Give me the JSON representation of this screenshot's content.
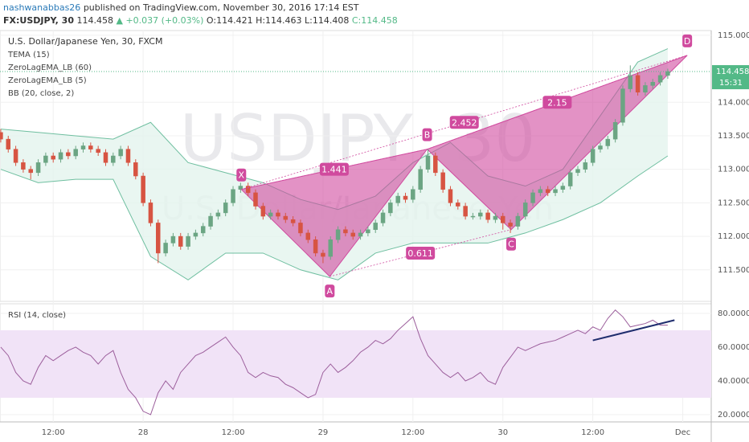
{
  "header": {
    "publisher": "nashwanabbas26",
    "published": "published on TradingView.com, November 30, 2016 17:14 EST"
  },
  "chart_data": {
    "type": "candlestick",
    "symbol": "FX:USDJPY, 30",
    "last": "114.458",
    "change": "▲ +0.037 (+0.03%)",
    "quote": [
      "O:114.421",
      "H:114.463",
      "L:114.408",
      "C:114.458"
    ],
    "title": "U.S. Dollar/Japanese Yen, 30, FXCM",
    "watermark": "USDJPY, 30",
    "watermark_sub": "U.S. Dollar/Japanese Yen",
    "indicators": [
      "TEMA (15)",
      "ZeroLagEMA_LB (60)",
      "ZeroLagEMA_LB (5)",
      "BB (20, close, 2)"
    ],
    "up_color": "#6ba583",
    "down_color": "#d75442",
    "x": [
      0,
      1,
      2,
      3,
      4,
      5,
      6,
      7,
      8,
      9,
      10,
      11,
      12,
      13,
      14,
      15,
      16,
      17,
      18,
      19,
      20,
      21,
      22,
      23,
      24,
      25,
      26,
      27,
      28,
      29,
      30,
      31,
      32,
      33,
      34,
      35,
      36,
      37,
      38,
      39,
      40,
      41,
      42,
      43,
      44,
      45,
      46,
      47,
      48,
      49,
      50,
      51,
      52,
      53,
      54,
      55,
      56,
      57,
      58,
      59,
      60,
      61,
      62,
      63,
      64,
      65,
      66,
      67,
      68,
      69,
      70,
      71,
      72,
      73,
      74,
      75,
      76,
      77,
      78,
      79,
      80,
      81,
      82,
      83,
      84,
      85,
      86,
      87,
      88,
      89
    ],
    "open": [
      113.55,
      113.45,
      113.3,
      113.1,
      113.0,
      112.95,
      113.1,
      113.2,
      113.15,
      113.25,
      113.2,
      113.3,
      113.35,
      113.3,
      113.25,
      113.1,
      113.2,
      113.3,
      113.1,
      112.9,
      112.5,
      112.2,
      111.75,
      111.9,
      112.0,
      111.85,
      112.0,
      112.05,
      112.15,
      112.3,
      112.35,
      112.5,
      112.7,
      112.75,
      112.65,
      112.45,
      112.3,
      112.35,
      112.3,
      112.25,
      112.2,
      112.05,
      111.95,
      111.75,
      111.7,
      111.95,
      112.1,
      112.05,
      112.0,
      112.05,
      112.1,
      112.2,
      112.35,
      112.5,
      112.6,
      112.55,
      112.7,
      113.0,
      113.2,
      112.95,
      112.7,
      112.5,
      112.45,
      112.3,
      112.3,
      112.35,
      112.25,
      112.3,
      112.2,
      112.15,
      112.3,
      112.5,
      112.65,
      112.7,
      112.65,
      112.7,
      112.75,
      112.95,
      113.0,
      113.1,
      113.3,
      113.35,
      113.45,
      113.7,
      114.2,
      114.4,
      114.15,
      114.25,
      114.3,
      114.4
    ],
    "high": [
      113.6,
      113.5,
      113.35,
      113.15,
      113.05,
      113.15,
      113.25,
      113.25,
      113.3,
      113.3,
      113.35,
      113.4,
      113.4,
      113.35,
      113.3,
      113.25,
      113.35,
      113.35,
      113.15,
      112.95,
      112.55,
      112.25,
      111.95,
      112.05,
      112.05,
      112.05,
      112.1,
      112.2,
      112.35,
      112.4,
      112.55,
      112.75,
      112.8,
      112.8,
      112.7,
      112.5,
      112.4,
      112.4,
      112.35,
      112.3,
      112.25,
      112.1,
      112.0,
      111.8,
      112.0,
      112.15,
      112.15,
      112.1,
      112.1,
      112.15,
      112.25,
      112.4,
      112.55,
      112.65,
      112.65,
      112.75,
      113.05,
      113.3,
      113.25,
      113.0,
      112.75,
      112.55,
      112.5,
      112.35,
      112.4,
      112.4,
      112.35,
      112.35,
      112.25,
      112.35,
      112.55,
      112.7,
      112.75,
      112.75,
      112.75,
      112.8,
      113.0,
      113.05,
      113.15,
      113.35,
      113.4,
      113.5,
      113.75,
      114.25,
      114.55,
      114.45,
      114.3,
      114.35,
      114.45,
      114.5
    ],
    "low": [
      113.4,
      113.25,
      113.05,
      112.95,
      112.85,
      112.9,
      113.05,
      113.1,
      113.1,
      113.15,
      113.15,
      113.25,
      113.25,
      113.2,
      113.05,
      113.05,
      113.15,
      113.05,
      112.85,
      112.45,
      112.15,
      111.6,
      111.7,
      111.85,
      111.8,
      111.8,
      111.95,
      112.0,
      112.1,
      112.25,
      112.3,
      112.45,
      112.65,
      112.6,
      112.4,
      112.25,
      112.25,
      112.25,
      112.2,
      112.15,
      112.0,
      111.9,
      111.7,
      111.6,
      111.65,
      111.9,
      112.0,
      111.95,
      111.95,
      112.0,
      112.05,
      112.15,
      112.3,
      112.45,
      112.5,
      112.5,
      112.65,
      112.95,
      112.9,
      112.65,
      112.45,
      112.4,
      112.25,
      112.25,
      112.25,
      112.2,
      112.2,
      112.1,
      112.05,
      112.1,
      112.25,
      112.45,
      112.6,
      112.6,
      112.6,
      112.65,
      112.7,
      112.9,
      112.95,
      113.05,
      113.25,
      113.3,
      113.4,
      113.65,
      114.15,
      114.1,
      114.1,
      114.2,
      114.25,
      114.35
    ],
    "close": [
      113.45,
      113.3,
      113.1,
      113.0,
      112.95,
      113.1,
      113.2,
      113.15,
      113.25,
      113.2,
      113.3,
      113.35,
      113.3,
      113.25,
      113.1,
      113.2,
      113.3,
      113.1,
      112.9,
      112.5,
      112.2,
      111.75,
      111.9,
      112.0,
      111.85,
      112.0,
      112.05,
      112.15,
      112.3,
      112.35,
      112.5,
      112.7,
      112.75,
      112.65,
      112.45,
      112.3,
      112.35,
      112.3,
      112.25,
      112.2,
      112.05,
      111.95,
      111.75,
      111.7,
      111.95,
      112.1,
      112.05,
      112.0,
      112.05,
      112.1,
      112.2,
      112.35,
      112.5,
      112.6,
      112.55,
      112.7,
      113.0,
      113.2,
      112.95,
      112.7,
      112.5,
      112.45,
      112.3,
      112.3,
      112.35,
      112.25,
      112.3,
      112.2,
      112.15,
      112.3,
      112.5,
      112.65,
      112.7,
      112.65,
      112.7,
      112.75,
      112.95,
      113.0,
      113.1,
      113.3,
      113.35,
      113.45,
      113.7,
      114.2,
      114.4,
      114.15,
      114.25,
      114.3,
      114.4,
      114.458
    ],
    "xlim": [
      -0.1,
      94.8
    ],
    "xticks": [
      {
        "value": 7,
        "label": "12:00"
      },
      {
        "value": 19,
        "label": "28"
      },
      {
        "value": 31,
        "label": "12:00"
      },
      {
        "value": 43,
        "label": "29"
      },
      {
        "value": 55,
        "label": "12:00"
      },
      {
        "value": 67,
        "label": "30"
      },
      {
        "value": 79,
        "label": "12:00"
      },
      {
        "value": 91,
        "label": "Dec"
      }
    ],
    "ylim": [
      111.03,
      115.07
    ],
    "yticks": [
      {
        "value": 111.5,
        "label": "111.500"
      },
      {
        "value": 112,
        "label": "112.000"
      },
      {
        "value": 112.5,
        "label": "112.500"
      },
      {
        "value": 113,
        "label": "113.000"
      },
      {
        "value": 113.5,
        "label": "113.500"
      },
      {
        "value": 114,
        "label": "114.000"
      },
      {
        "value": 115,
        "label": "115.000"
      }
    ],
    "last_price": {
      "value": 114.458,
      "label": "114.458",
      "countdown": "15:31",
      "color": "#53b987"
    },
    "bollinger": {
      "color": "#6fbfa0",
      "fill": "#e3f4ee",
      "x": [
        0,
        5,
        10,
        15,
        20,
        25,
        30,
        35,
        40,
        45,
        50,
        55,
        60,
        65,
        70,
        75,
        80,
        85,
        89
      ],
      "upper": [
        113.6,
        113.55,
        113.5,
        113.45,
        113.7,
        113.1,
        112.95,
        112.8,
        112.55,
        112.4,
        112.6,
        113.1,
        113.4,
        112.9,
        112.75,
        113.0,
        113.8,
        114.6,
        114.8
      ],
      "lower": [
        113.0,
        112.8,
        112.85,
        112.85,
        111.7,
        111.35,
        111.75,
        111.75,
        111.5,
        111.35,
        111.75,
        111.9,
        111.9,
        111.9,
        112.05,
        112.25,
        112.5,
        112.9,
        113.2
      ]
    },
    "pattern": {
      "color": "#d04a9e",
      "points": [
        {
          "label": "X",
          "x": 32.1,
          "y": 112.7
        },
        {
          "label": "A",
          "x": 43.9,
          "y": 111.4
        },
        {
          "label": "B",
          "x": 56.9,
          "y": 113.3
        },
        {
          "label": "C",
          "x": 68.1,
          "y": 112.1
        },
        {
          "label": "D",
          "x": 91.6,
          "y": 114.7
        }
      ],
      "ratios": [
        {
          "value": 1.441,
          "from": 0,
          "to": 2
        },
        {
          "value": 0.611,
          "from": 1,
          "to": 3
        },
        {
          "value": 2.452,
          "from": 0,
          "to": 4
        },
        {
          "value": 2.15,
          "from": 2,
          "to": 4
        }
      ]
    },
    "rsi": {
      "name": "RSI (14, close)",
      "color": "#9c5f9c",
      "band": [
        30,
        70
      ],
      "band_color": "#f1e3f7",
      "values": [
        60,
        55,
        45,
        40,
        38,
        48,
        55,
        52,
        55,
        58,
        60,
        57,
        55,
        50,
        55,
        58,
        45,
        35,
        30,
        22,
        20,
        33,
        40,
        35,
        45,
        50,
        55,
        57,
        60,
        63,
        66,
        60,
        55,
        45,
        42,
        45,
        43,
        42,
        38,
        36,
        33,
        30,
        32,
        45,
        50,
        45,
        48,
        52,
        57,
        60,
        64,
        62,
        65,
        70,
        74,
        78,
        65,
        55,
        50,
        45,
        42,
        45,
        40,
        42,
        45,
        40,
        38,
        48,
        54,
        60,
        58,
        60,
        62,
        63,
        64,
        66,
        68,
        70,
        68,
        72,
        70,
        77,
        82,
        78,
        72,
        73,
        74,
        76,
        73,
        73
      ],
      "ylim": [
        15.7,
        85.7
      ],
      "yticks": [
        {
          "value": 20,
          "label": "20.0000"
        },
        {
          "value": 40,
          "label": "40.0000"
        },
        {
          "value": 60,
          "label": "60.0000"
        },
        {
          "value": 80,
          "label": "80.0000"
        }
      ],
      "trendline": {
        "x": [
          79,
          89.9
        ],
        "y": [
          64,
          76
        ],
        "color": "#1f2d6e"
      }
    }
  }
}
